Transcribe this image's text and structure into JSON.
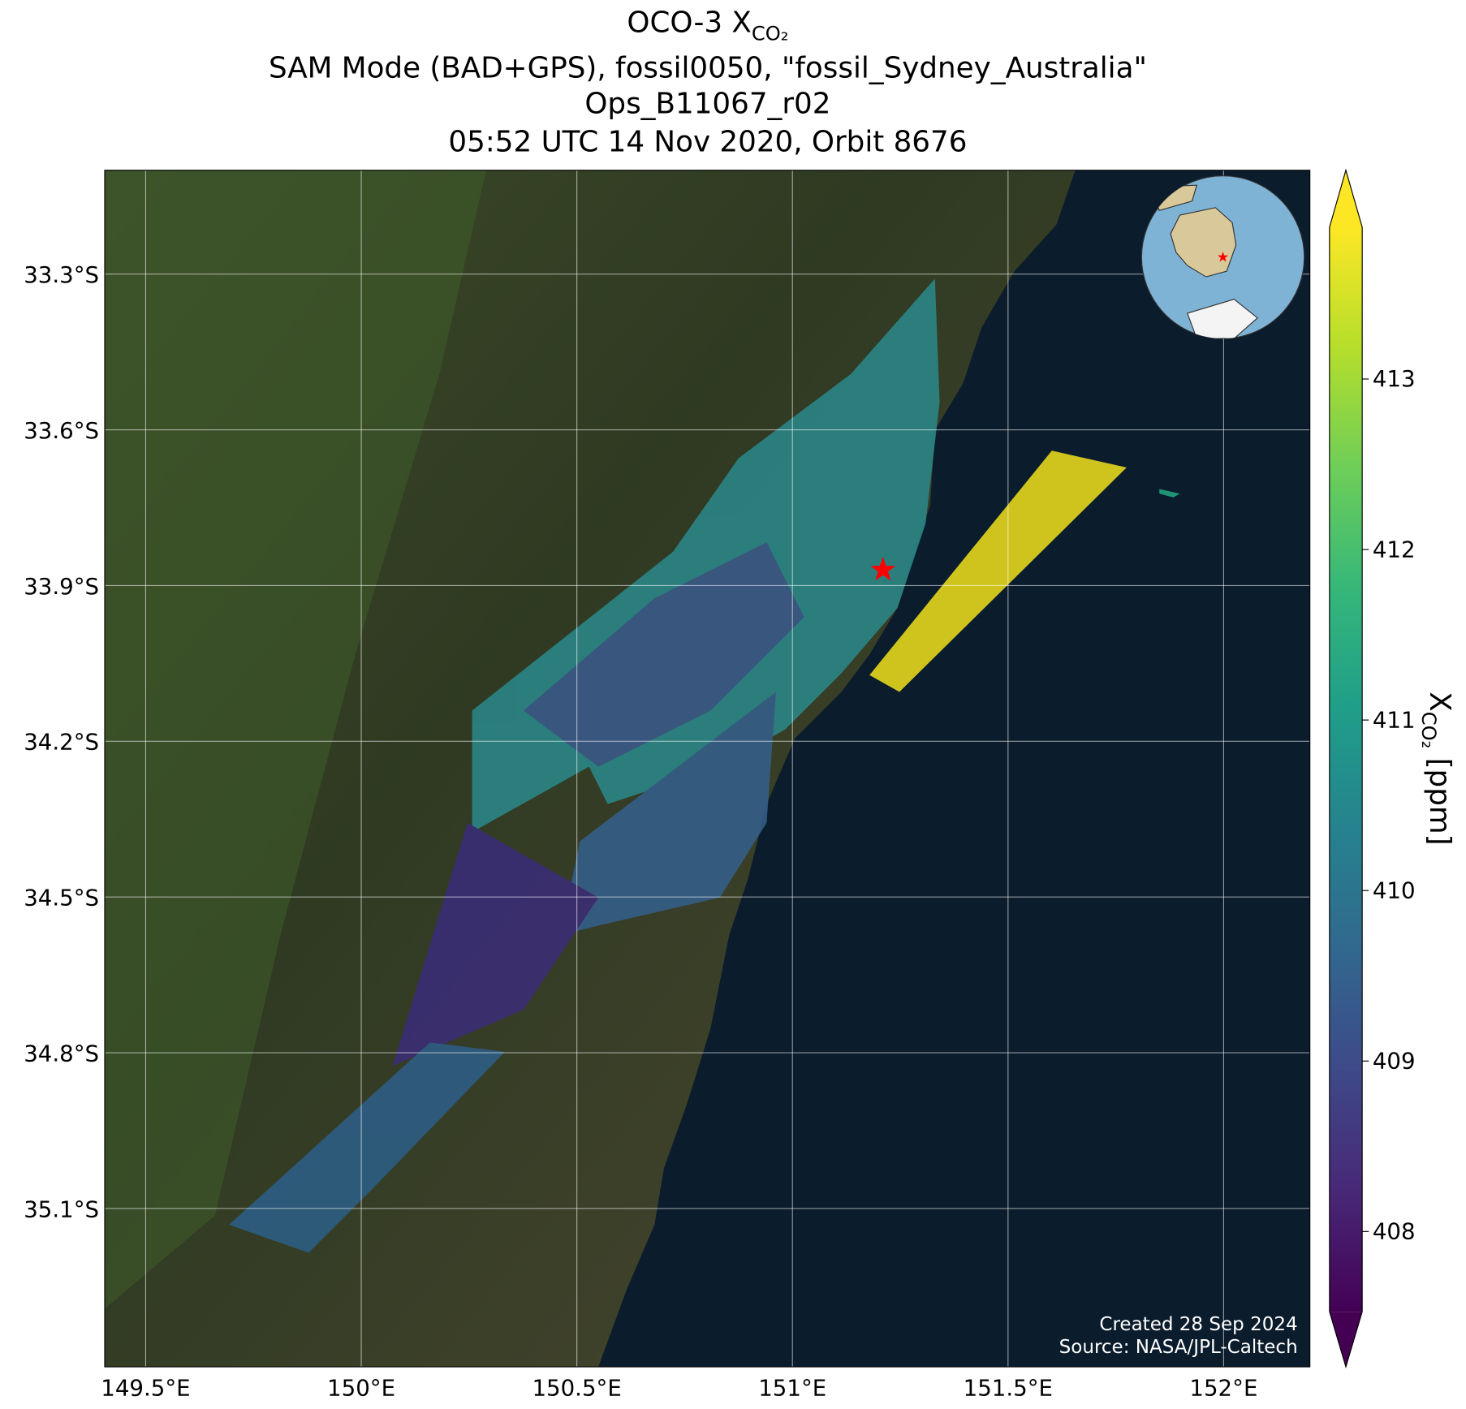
{
  "chart_data": {
    "type": "map",
    "title": {
      "line1": {
        "main": "OCO-3 X",
        "sub": "CO₂"
      },
      "line2": "SAM Mode (BAD+GPS), fossil0050, \"fossil_Sydney_Australia\"",
      "line3": "Ops_B11067_r02",
      "line4": "05:52 UTC 14 Nov 2020, Orbit 8676"
    },
    "xlim": [
      149.405,
      152.2
    ],
    "ylim": [
      -35.405,
      -33.1
    ],
    "xticks": [
      {
        "value": 149.5,
        "label": "149.5°E"
      },
      {
        "value": 150,
        "label": "150°E"
      },
      {
        "value": 150.5,
        "label": "150.5°E"
      },
      {
        "value": 151,
        "label": "151°E"
      },
      {
        "value": 151.5,
        "label": "151.5°E"
      },
      {
        "value": 152,
        "label": "152°E"
      }
    ],
    "yticks": [
      {
        "value": -33.3,
        "label": "33.3°S"
      },
      {
        "value": -33.6,
        "label": "33.6°S"
      },
      {
        "value": -33.9,
        "label": "33.9°S"
      },
      {
        "value": -34.2,
        "label": "34.2°S"
      },
      {
        "value": -34.5,
        "label": "34.5°S"
      },
      {
        "value": -34.8,
        "label": "34.8°S"
      },
      {
        "value": -35.1,
        "label": "35.1°S"
      }
    ],
    "grid": true,
    "site": {
      "lon": 151.21,
      "lat": -33.87,
      "color": "#ff0000"
    },
    "colorbar": {
      "colormap": "viridis",
      "clim": [
        407.53,
        413.89
      ],
      "extend": "both",
      "ticks": [
        408,
        409,
        410,
        411,
        412,
        413
      ],
      "label": {
        "main": "X",
        "sub": "CO₂",
        "unit": " [ppm]"
      }
    },
    "credits": [
      "Created 28 Sep 2024",
      "Source: NASA/JPL-Caltech"
    ]
  }
}
